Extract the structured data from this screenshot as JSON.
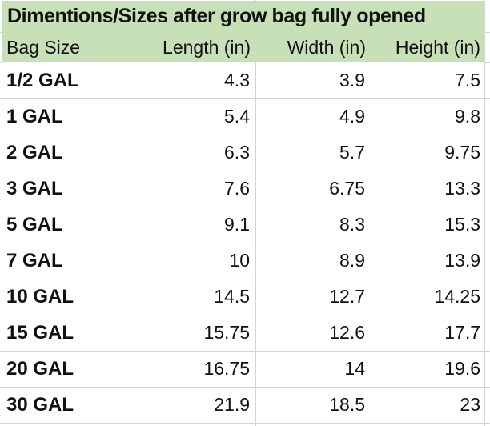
{
  "title": "Dimentions/Sizes after grow bag fully opened",
  "colors": {
    "header_fill": "#c8e0b8",
    "gridline": "#d4d4d4",
    "text": "#111111"
  },
  "table": {
    "columns": [
      "Bag Size",
      "Length (in)",
      "Width (in)",
      "Height (in)"
    ],
    "rows": [
      {
        "bag_size": "1/2 GAL",
        "length": "4.3",
        "width": "3.9",
        "height": "7.5"
      },
      {
        "bag_size": "1 GAL",
        "length": "5.4",
        "width": "4.9",
        "height": "9.8"
      },
      {
        "bag_size": "2 GAL",
        "length": "6.3",
        "width": "5.7",
        "height": "9.75"
      },
      {
        "bag_size": "3 GAL",
        "length": "7.6",
        "width": "6.75",
        "height": "13.3"
      },
      {
        "bag_size": "5 GAL",
        "length": "9.1",
        "width": "8.3",
        "height": "15.3"
      },
      {
        "bag_size": "7 GAL",
        "length": "10",
        "width": "8.9",
        "height": "13.9"
      },
      {
        "bag_size": "10 GAL",
        "length": "14.5",
        "width": "12.7",
        "height": "14.25"
      },
      {
        "bag_size": "15 GAL",
        "length": "15.75",
        "width": "12.6",
        "height": "17.7"
      },
      {
        "bag_size": "20 GAL",
        "length": "16.75",
        "width": "14",
        "height": "19.6"
      },
      {
        "bag_size": "30 GAL",
        "length": "21.9",
        "width": "18.5",
        "height": "23"
      }
    ]
  }
}
